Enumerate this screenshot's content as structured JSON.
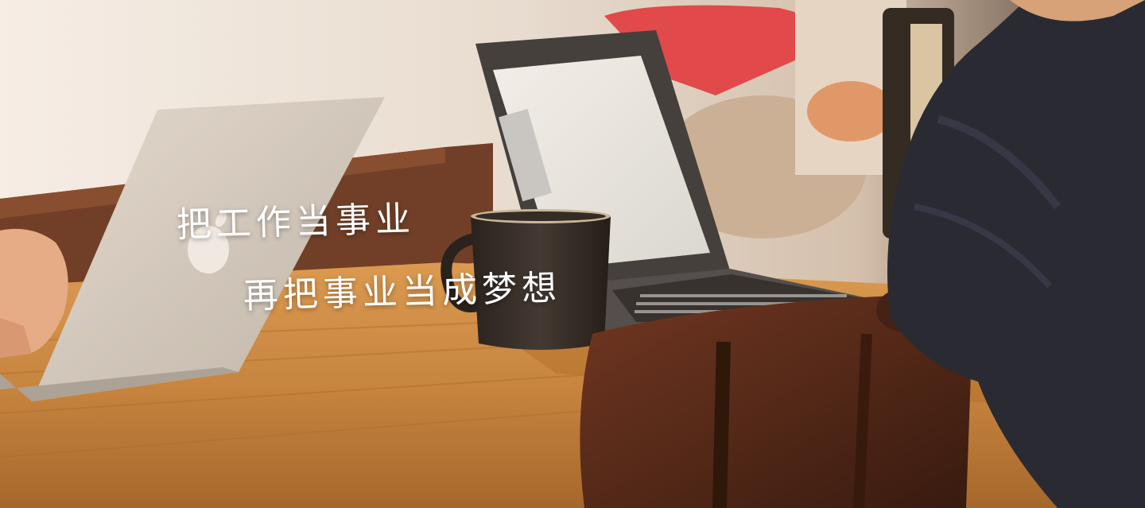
{
  "hero": {
    "slogan_line1": "把工作当事业",
    "slogan_line2": "再把事业当成梦想"
  },
  "colors": {
    "text": "#ffffff",
    "table_wood": "#c58b45",
    "mug": "#2b2826",
    "laptop_silver": "#d6d1c9",
    "chair": "#4a2318",
    "shirt": "#1f2532",
    "cap": "#e0454b"
  }
}
